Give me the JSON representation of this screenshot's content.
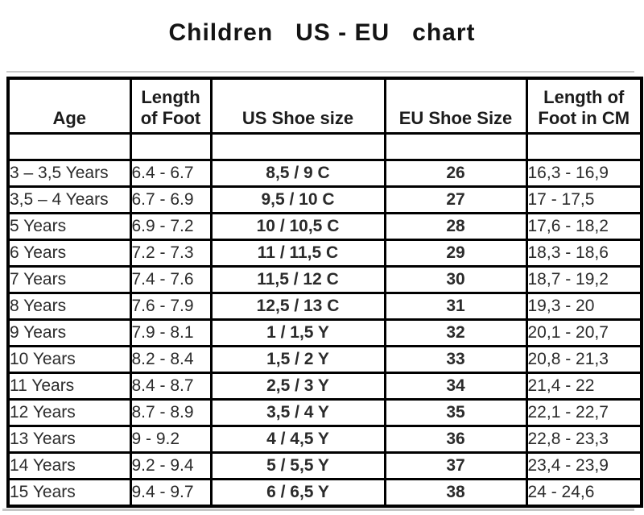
{
  "title": "Children   US - EU   chart",
  "chart_data": {
    "type": "table",
    "title": "Children   US - EU   chart",
    "columns": [
      "Age",
      "Length\nof Foot",
      "US Shoe size",
      "EU Shoe Size",
      "Length of\nFoot in CM"
    ],
    "rows": [
      [
        "3 – 3,5 Years",
        "6.4 - 6.7",
        "8,5 / 9 C",
        "26",
        "16,3 - 16,9"
      ],
      [
        "3,5 – 4 Years",
        "6.7 - 6.9",
        "9,5 / 10 C",
        "27",
        "17 - 17,5"
      ],
      [
        "5 Years",
        "6.9 - 7.2",
        "10 / 10,5 C",
        "28",
        "17,6 - 18,2"
      ],
      [
        "6 Years",
        "7.2 - 7.3",
        "11 / 11,5 C",
        "29",
        "18,3 - 18,6"
      ],
      [
        "7 Years",
        "7.4 - 7.6",
        "11,5 / 12 C",
        "30",
        "18,7 - 19,2"
      ],
      [
        "8 Years",
        "7.6 - 7.9",
        "12,5 / 13 C",
        "31",
        "19,3 - 20"
      ],
      [
        "9 Years",
        "7.9 - 8.1",
        "1 / 1,5 Y",
        "32",
        "20,1 - 20,7"
      ],
      [
        "10 Years",
        "8.2 - 8.4",
        "1,5 / 2 Y",
        "33",
        "20,8 - 21,3"
      ],
      [
        "11 Years",
        "8.4 - 8.7",
        "2,5 / 3 Y",
        "34",
        "21,4 - 22"
      ],
      [
        "12 Years",
        "8.7 - 8.9",
        "3,5 / 4 Y",
        "35",
        "22,1 - 22,7"
      ],
      [
        "13 Years",
        "9 - 9.2",
        "4 / 4,5 Y",
        "36",
        "22,8 - 23,3"
      ],
      [
        "14 Years",
        "9.2 - 9.4",
        "5 / 5,5 Y",
        "37",
        "23,4 - 23,9"
      ],
      [
        "15 Years",
        "9.4 - 9.7",
        "6 / 6,5 Y",
        "38",
        "24 - 24,6"
      ]
    ]
  },
  "colors": {
    "background": "#ffffff",
    "border": "#000000",
    "text": "#2b2b2b",
    "divider": "#c8c8c8"
  }
}
